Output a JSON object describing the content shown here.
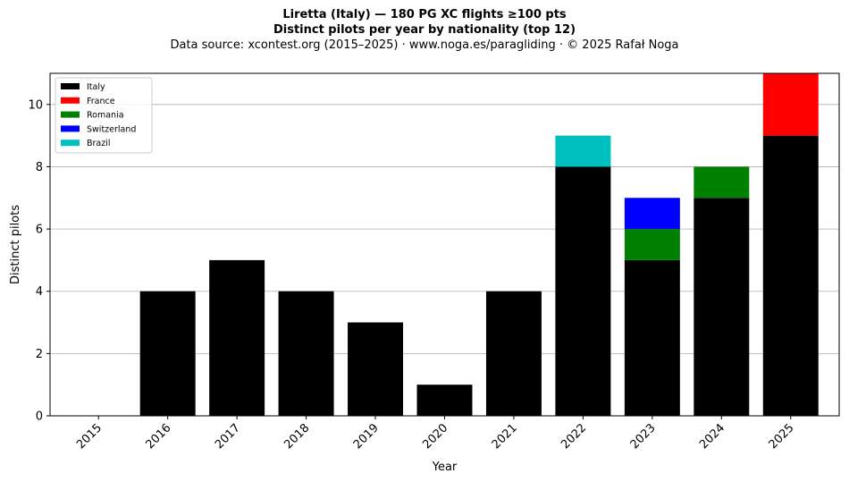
{
  "chart_data": {
    "type": "bar",
    "stacked": true,
    "title": "Liretta (Italy)  —  180 PG XC flights ≥100 pts",
    "subtitle": "Distinct pilots per year by nationality (top 12)",
    "source": "Data source: xcontest.org (2015–2025)  ·  www.noga.es/paragliding  ·  © 2025 Rafał Noga",
    "xlabel": "Year",
    "ylabel": "Distinct pilots",
    "categories": [
      "2015",
      "2016",
      "2017",
      "2018",
      "2019",
      "2020",
      "2021",
      "2022",
      "2023",
      "2024",
      "2025"
    ],
    "ylim": [
      0,
      11
    ],
    "yticks": [
      0,
      2,
      4,
      6,
      8,
      10
    ],
    "grid": "y",
    "legend_position": "top-left",
    "series": [
      {
        "name": "Italy",
        "color": "#000000",
        "values": [
          0,
          4,
          5,
          4,
          3,
          1,
          4,
          8,
          5,
          7,
          9
        ]
      },
      {
        "name": "France",
        "color": "#ff0000",
        "values": [
          0,
          0,
          0,
          0,
          0,
          0,
          0,
          0,
          0,
          0,
          2
        ]
      },
      {
        "name": "Romania",
        "color": "#008000",
        "values": [
          0,
          0,
          0,
          0,
          0,
          0,
          0,
          0,
          1,
          1,
          0
        ]
      },
      {
        "name": "Switzerland",
        "color": "#0000ff",
        "values": [
          0,
          0,
          0,
          0,
          0,
          0,
          0,
          0,
          1,
          0,
          0
        ]
      },
      {
        "name": "Brazil",
        "color": "#00bfbf",
        "values": [
          0,
          0,
          0,
          0,
          0,
          0,
          0,
          1,
          0,
          0,
          0
        ]
      }
    ]
  }
}
